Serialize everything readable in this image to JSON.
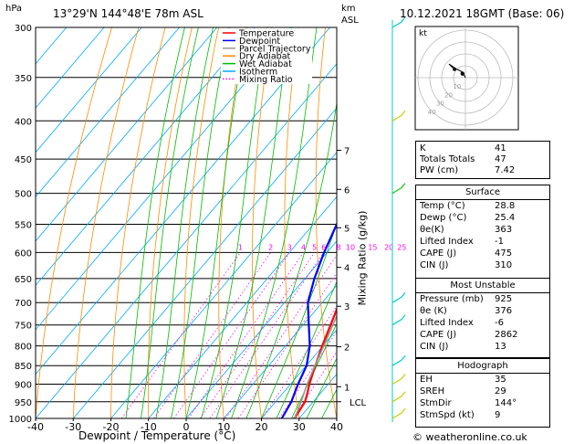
{
  "header": {
    "hpa_label": "hPa",
    "location": "13°29'N  144°48'E  78m  ASL",
    "km_label": "km",
    "asl_label": "ASL",
    "datetime": "10.12.2021  18GMT  (Base: 06)"
  },
  "chart_data": {
    "type": "line",
    "xlabel": "Dewpoint / Temperature (°C)",
    "ylabel": "",
    "x_ticks": [
      -40,
      -30,
      -20,
      -10,
      0,
      10,
      20,
      30,
      40
    ],
    "xlim": [
      -40,
      40
    ],
    "p_ticks": [
      300,
      350,
      400,
      450,
      500,
      550,
      600,
      650,
      700,
      750,
      800,
      850,
      900,
      950,
      1000
    ],
    "ylim_hpa": [
      1000,
      300
    ],
    "log_pressure": true,
    "km_ticks": [
      {
        "km": "1",
        "p": 907
      },
      {
        "km": "2",
        "p": 802
      },
      {
        "km": "3",
        "p": 708
      },
      {
        "km": "4",
        "p": 628
      },
      {
        "km": "5",
        "p": 556
      },
      {
        "km": "6",
        "p": 494
      },
      {
        "km": "7",
        "p": 438
      }
    ],
    "lcl_label": "LCL",
    "lcl_p": 950,
    "mixing_ratio_axis_label": "Mixing Ratio (g/kg)",
    "mixing_ratio_labels": [
      "1",
      "2",
      "3",
      "4",
      "5",
      "6",
      "8",
      "10",
      "15",
      "20",
      "25"
    ],
    "mixing_ratio_values": [
      1,
      2,
      3,
      4,
      5,
      6,
      8,
      10,
      15,
      20,
      25
    ],
    "legend": {
      "position": "top-center",
      "entries": [
        {
          "name": "Temperature",
          "color": "#ff0000"
        },
        {
          "name": "Dewpoint",
          "color": "#0000ff"
        },
        {
          "name": "Parcel Trajectory",
          "color": "#999999"
        },
        {
          "name": "Dry Adiabat",
          "color": "#ff8c00"
        },
        {
          "name": "Wet Adiabat",
          "color": "#00bb00"
        },
        {
          "name": "Isotherm",
          "color": "#00aaff"
        },
        {
          "name": "Mixing Ratio",
          "color": "#ff00ff"
        }
      ]
    },
    "series": [
      {
        "name": "Temperature",
        "color": "#ff0000",
        "points": [
          [
            1000,
            28.8
          ],
          [
            950,
            27.8
          ],
          [
            925,
            26.5
          ],
          [
            900,
            25.0
          ],
          [
            850,
            22.4
          ],
          [
            800,
            19.8
          ],
          [
            750,
            17.3
          ],
          [
            700,
            14.6
          ],
          [
            650,
            11.2
          ],
          [
            600,
            7.3
          ],
          [
            550,
            3.6
          ],
          [
            500,
            -0.7
          ],
          [
            450,
            -5.3
          ],
          [
            400,
            -11.2
          ],
          [
            350,
            -18.0
          ]
        ]
      },
      {
        "name": "Dewpoint",
        "color": "#0000ff",
        "points": [
          [
            1000,
            25.4
          ],
          [
            950,
            24.2
          ],
          [
            925,
            23.1
          ],
          [
            900,
            22.0
          ],
          [
            850,
            20.1
          ],
          [
            800,
            16.5
          ],
          [
            750,
            11.5
          ],
          [
            700,
            6.2
          ],
          [
            650,
            2.5
          ],
          [
            600,
            -0.8
          ],
          [
            550,
            -3.8
          ],
          [
            500,
            -7.2
          ],
          [
            450,
            -11.5
          ],
          [
            400,
            -18.0
          ],
          [
            350,
            -28.0
          ]
        ]
      },
      {
        "name": "Parcel Trajectory",
        "color": "#999999",
        "points": [
          [
            1000,
            28.8
          ],
          [
            950,
            26.8
          ],
          [
            900,
            24.4
          ],
          [
            850,
            22.3
          ],
          [
            800,
            20.2
          ],
          [
            750,
            17.9
          ],
          [
            700,
            15.4
          ],
          [
            650,
            12.7
          ],
          [
            600,
            9.6
          ],
          [
            550,
            6.1
          ],
          [
            500,
            2.0
          ],
          [
            450,
            -2.6
          ],
          [
            400,
            -8.2
          ],
          [
            350,
            -15.0
          ]
        ]
      }
    ],
    "wind_barbs": [
      {
        "p": 1000,
        "color": "#cccc00"
      },
      {
        "p": 950,
        "color": "#cccc00"
      },
      {
        "p": 900,
        "color": "#cccc00"
      },
      {
        "p": 850,
        "color": "#00cccc"
      },
      {
        "p": 750,
        "color": "#00cccc"
      },
      {
        "p": 700,
        "color": "#00cccc"
      },
      {
        "p": 500,
        "color": "#00cc00"
      },
      {
        "p": 400,
        "color": "#cccc00"
      },
      {
        "p": 300,
        "color": "#00cccc"
      }
    ]
  },
  "hodograph": {
    "label": "kt",
    "rings": [
      "10",
      "20",
      "30",
      "40"
    ],
    "trace": [
      [
        0,
        0
      ],
      [
        -1,
        -2
      ],
      [
        -3,
        -3
      ],
      [
        -6,
        -5
      ],
      [
        -4,
        -3
      ]
    ],
    "storm_motion": {
      "dir": 144,
      "speed": 9
    }
  },
  "indices": {
    "rows": [
      {
        "key": "K",
        "value": "41"
      },
      {
        "key": "Totals Totals",
        "value": "47"
      },
      {
        "key": "PW (cm)",
        "value": "7.42"
      }
    ]
  },
  "surface": {
    "title": "Surface",
    "rows": [
      {
        "key": "Temp (°C)",
        "value": "28.8"
      },
      {
        "key": "Dewp (°C)",
        "value": "25.4"
      },
      {
        "key": "θe(K)",
        "value": "363"
      },
      {
        "key": "Lifted Index",
        "value": "-1"
      },
      {
        "key": "CAPE (J)",
        "value": "475"
      },
      {
        "key": "CIN (J)",
        "value": "310"
      }
    ]
  },
  "most_unstable": {
    "title": "Most Unstable",
    "rows": [
      {
        "key": "Pressure (mb)",
        "value": "925"
      },
      {
        "key": "θe (K)",
        "value": "376"
      },
      {
        "key": "Lifted Index",
        "value": "-6"
      },
      {
        "key": "CAPE (J)",
        "value": "2862"
      },
      {
        "key": "CIN (J)",
        "value": "13"
      }
    ]
  },
  "hodo_table": {
    "title": "Hodograph",
    "rows": [
      {
        "key": "EH",
        "value": "35"
      },
      {
        "key": "SREH",
        "value": "29"
      },
      {
        "key": "StmDir",
        "value": "144°"
      },
      {
        "key": "StmSpd (kt)",
        "value": "9"
      }
    ]
  },
  "footer": {
    "copyright": "© weatheronline.co.uk"
  }
}
